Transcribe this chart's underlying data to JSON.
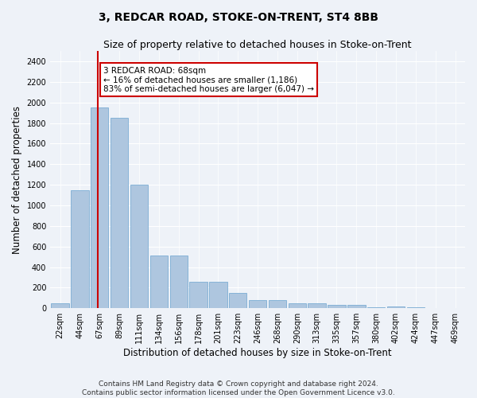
{
  "title": "3, REDCAR ROAD, STOKE-ON-TRENT, ST4 8BB",
  "subtitle": "Size of property relative to detached houses in Stoke-on-Trent",
  "xlabel": "Distribution of detached houses by size in Stoke-on-Trent",
  "ylabel": "Number of detached properties",
  "bar_labels": [
    "22sqm",
    "44sqm",
    "67sqm",
    "89sqm",
    "111sqm",
    "134sqm",
    "156sqm",
    "178sqm",
    "201sqm",
    "223sqm",
    "246sqm",
    "268sqm",
    "290sqm",
    "313sqm",
    "335sqm",
    "357sqm",
    "380sqm",
    "402sqm",
    "424sqm",
    "447sqm",
    "469sqm"
  ],
  "bar_values": [
    50,
    1150,
    1950,
    1850,
    1200,
    510,
    510,
    260,
    260,
    150,
    80,
    80,
    45,
    45,
    35,
    30,
    10,
    15,
    10,
    5,
    5
  ],
  "bar_color": "#aec6df",
  "bar_edge_color": "#7badd4",
  "property_line_x": 1.92,
  "annotation_title": "3 REDCAR ROAD: 68sqm",
  "annotation_line1": "← 16% of detached houses are smaller (1,186)",
  "annotation_line2": "83% of semi-detached houses are larger (6,047) →",
  "annotation_box_color": "#ffffff",
  "annotation_box_edge": "#cc0000",
  "red_line_color": "#cc0000",
  "ylim": [
    0,
    2500
  ],
  "yticks": [
    0,
    200,
    400,
    600,
    800,
    1000,
    1200,
    1400,
    1600,
    1800,
    2000,
    2200,
    2400
  ],
  "background_color": "#eef2f8",
  "plot_bg_color": "#eef2f8",
  "grid_color": "#ffffff",
  "title_fontsize": 10,
  "subtitle_fontsize": 9,
  "axis_label_fontsize": 8.5,
  "tick_fontsize": 7,
  "annot_fontsize": 7.5,
  "footer_fontsize": 6.5,
  "footer_line1": "Contains HM Land Registry data © Crown copyright and database right 2024.",
  "footer_line2": "Contains public sector information licensed under the Open Government Licence v3.0."
}
